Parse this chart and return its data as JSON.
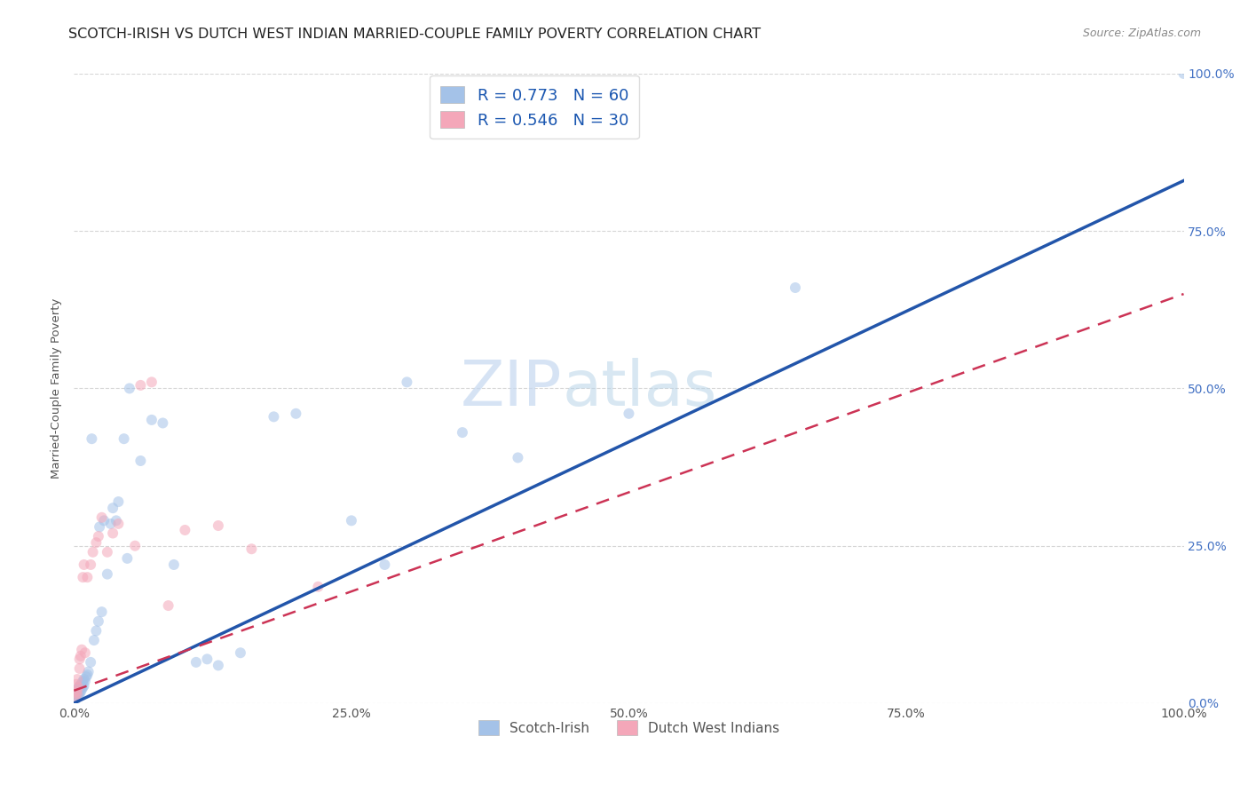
{
  "title": "SCOTCH-IRISH VS DUTCH WEST INDIAN MARRIED-COUPLE FAMILY POVERTY CORRELATION CHART",
  "source": "Source: ZipAtlas.com",
  "ylabel": "Married-Couple Family Poverty",
  "watermark_zip": "ZIP",
  "watermark_atlas": "atlas",
  "legend_line1": "R = 0.773   N = 60",
  "legend_line2": "R = 0.546   N = 30",
  "legend_label1": "Scotch-Irish",
  "legend_label2": "Dutch West Indians",
  "blue_scatter_color": "#a4c2e8",
  "pink_scatter_color": "#f4a7b9",
  "blue_line_color": "#2255aa",
  "pink_line_color": "#cc3355",
  "title_fontsize": 11.5,
  "axis_label_fontsize": 9.5,
  "tick_fontsize": 10,
  "legend_fontsize": 13,
  "watermark_fontsize_zip": 52,
  "watermark_fontsize_atlas": 52,
  "background_color": "#ffffff",
  "grid_color": "#cccccc",
  "xlim": [
    0.0,
    1.0
  ],
  "ylim": [
    0.0,
    1.0
  ],
  "x_ticks": [
    0.0,
    0.25,
    0.5,
    0.75,
    1.0
  ],
  "x_tick_labels": [
    "0.0%",
    "25.0%",
    "50.0%",
    "75.0%",
    "100.0%"
  ],
  "y_tick_labels_right": [
    "0.0%",
    "25.0%",
    "50.0%",
    "75.0%",
    "100.0%"
  ],
  "scatter_size": 75,
  "scatter_alpha": 0.55,
  "si_x": [
    0.001,
    0.001,
    0.002,
    0.002,
    0.002,
    0.003,
    0.003,
    0.003,
    0.004,
    0.004,
    0.004,
    0.005,
    0.005,
    0.005,
    0.006,
    0.006,
    0.007,
    0.007,
    0.008,
    0.008,
    0.009,
    0.009,
    0.01,
    0.011,
    0.012,
    0.013,
    0.015,
    0.016,
    0.018,
    0.02,
    0.022,
    0.023,
    0.025,
    0.027,
    0.03,
    0.033,
    0.035,
    0.038,
    0.04,
    0.045,
    0.048,
    0.05,
    0.06,
    0.07,
    0.08,
    0.09,
    0.11,
    0.12,
    0.13,
    0.15,
    0.18,
    0.2,
    0.25,
    0.28,
    0.3,
    0.35,
    0.4,
    0.5,
    0.65,
    1.0
  ],
  "si_y": [
    0.005,
    0.01,
    0.008,
    0.012,
    0.018,
    0.01,
    0.015,
    0.022,
    0.012,
    0.018,
    0.025,
    0.015,
    0.02,
    0.028,
    0.018,
    0.025,
    0.022,
    0.032,
    0.025,
    0.035,
    0.028,
    0.038,
    0.035,
    0.042,
    0.045,
    0.05,
    0.065,
    0.42,
    0.1,
    0.115,
    0.13,
    0.28,
    0.145,
    0.29,
    0.205,
    0.285,
    0.31,
    0.29,
    0.32,
    0.42,
    0.23,
    0.5,
    0.385,
    0.45,
    0.445,
    0.22,
    0.065,
    0.07,
    0.06,
    0.08,
    0.455,
    0.46,
    0.29,
    0.22,
    0.51,
    0.43,
    0.39,
    0.46,
    0.66,
    1.0
  ],
  "dw_x": [
    0.001,
    0.002,
    0.002,
    0.003,
    0.003,
    0.004,
    0.005,
    0.005,
    0.006,
    0.007,
    0.008,
    0.009,
    0.01,
    0.012,
    0.015,
    0.017,
    0.02,
    0.022,
    0.025,
    0.03,
    0.035,
    0.04,
    0.055,
    0.06,
    0.07,
    0.085,
    0.1,
    0.13,
    0.16,
    0.22
  ],
  "dw_y": [
    0.01,
    0.018,
    0.03,
    0.015,
    0.038,
    0.025,
    0.055,
    0.07,
    0.075,
    0.085,
    0.2,
    0.22,
    0.08,
    0.2,
    0.22,
    0.24,
    0.255,
    0.265,
    0.295,
    0.24,
    0.27,
    0.285,
    0.25,
    0.505,
    0.51,
    0.155,
    0.275,
    0.282,
    0.245,
    0.185
  ],
  "blue_line_x0": 0.0,
  "blue_line_x1": 1.0,
  "blue_line_y0": 0.0,
  "blue_line_y1": 0.83,
  "pink_line_x0": 0.0,
  "pink_line_x1": 1.0,
  "pink_line_y0": 0.02,
  "pink_line_y1": 0.65
}
